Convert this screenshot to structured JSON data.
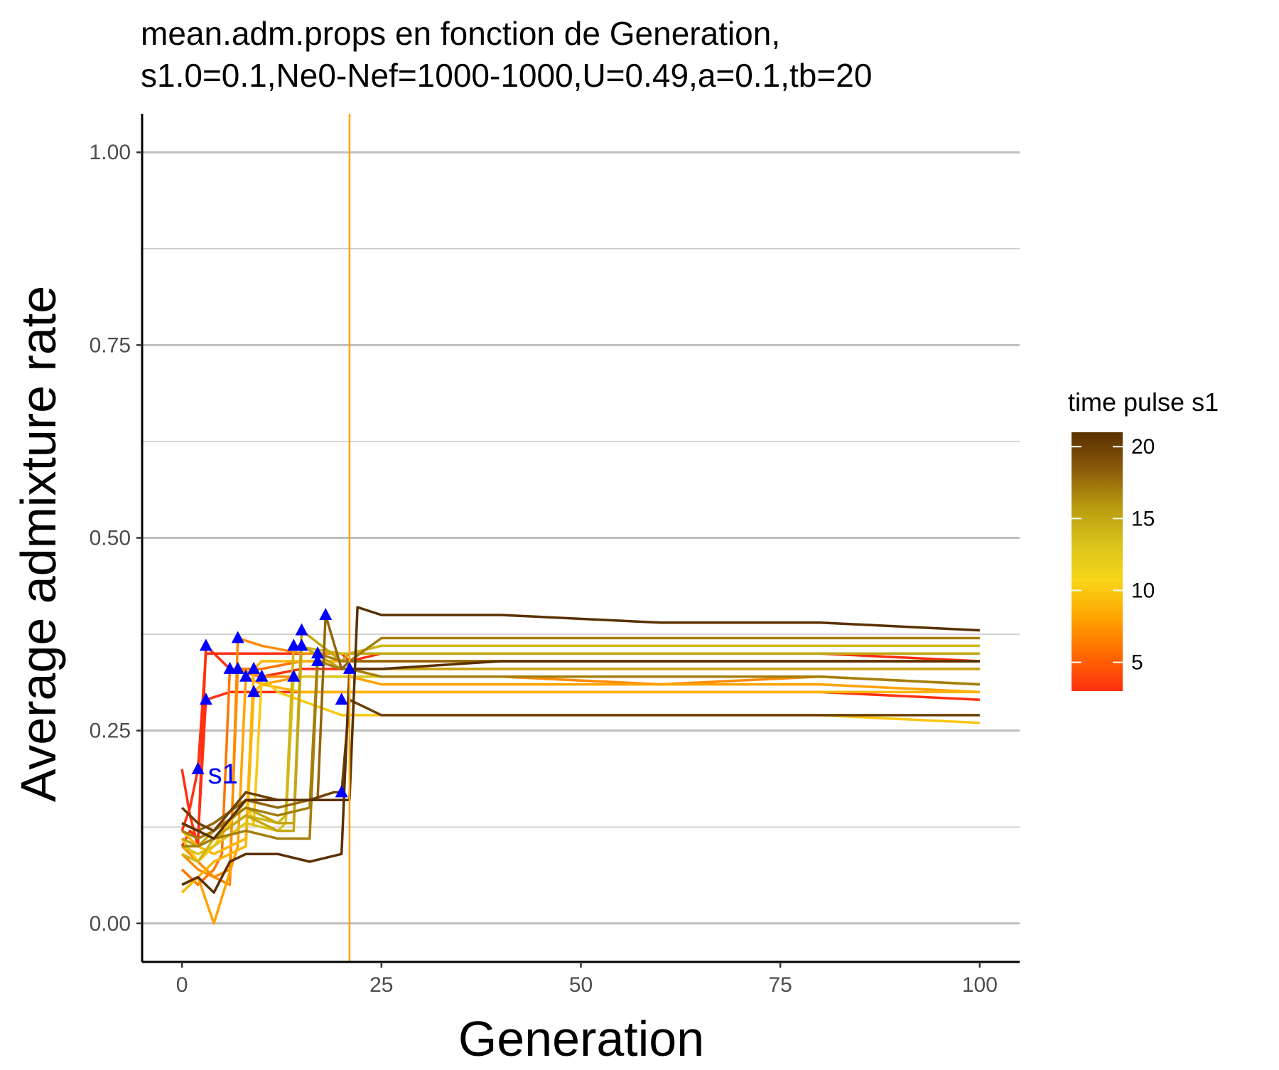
{
  "chart_data": {
    "type": "line",
    "title": [
      "mean.adm.props en fonction de Generation,",
      "s1.0=0.1,Ne0-Nef=1000-1000,U=0.49,a=0.1,tb=20"
    ],
    "xlabel": "Generation",
    "ylabel": "Average admixture rate",
    "xlim": [
      -5,
      105
    ],
    "ylim": [
      -0.05,
      1.05
    ],
    "x_ticks": [
      0,
      25,
      50,
      75,
      100
    ],
    "x_tick_labels": [
      "0",
      "25",
      "50",
      "75",
      "100"
    ],
    "y_ticks": [
      0.0,
      0.25,
      0.5,
      0.75,
      1.0
    ],
    "y_tick_labels": [
      "0.00",
      "0.25",
      "0.50",
      "0.75",
      "1.00"
    ],
    "y_minor_ticks": [
      0.125,
      0.375,
      0.625,
      0.875
    ],
    "grid": "horizontal",
    "vline": {
      "x": 21,
      "color": "#FFA500"
    },
    "legend": {
      "title": "time pulse s1",
      "placement": "right",
      "min": 3,
      "max": 21,
      "ticks": [
        5,
        10,
        15,
        20
      ],
      "tick_labels": [
        "5",
        "10",
        "15",
        "20"
      ],
      "colors": [
        "#FF3010",
        "#FF6A00",
        "#FFA500",
        "#F7D618",
        "#D8C21B",
        "#B89A0E",
        "#8A5A0A",
        "#5A3000"
      ]
    },
    "marker_color": "#0000FF",
    "marker_label": "s1",
    "series": [
      {
        "pulse": 2,
        "x": [
          0,
          1,
          2,
          3,
          5,
          8,
          12,
          20,
          21,
          25,
          40,
          60,
          80,
          100
        ],
        "y": [
          0.12,
          0.15,
          0.2,
          0.35,
          0.35,
          0.35,
          0.35,
          0.35,
          0.34,
          0.35,
          0.35,
          0.35,
          0.35,
          0.34
        ]
      },
      {
        "pulse": 3,
        "x": [
          0,
          1,
          2,
          3,
          6,
          10,
          15,
          20,
          21,
          25,
          40,
          60,
          80,
          100
        ],
        "y": [
          0.1,
          0.12,
          0.11,
          0.29,
          0.3,
          0.3,
          0.3,
          0.3,
          0.3,
          0.3,
          0.3,
          0.3,
          0.3,
          0.29
        ]
      },
      {
        "pulse": 3,
        "x": [
          0,
          1,
          2,
          3,
          6,
          10,
          15,
          20,
          21,
          25,
          40,
          60,
          80,
          100
        ],
        "y": [
          0.2,
          0.14,
          0.1,
          0.36,
          0.33,
          0.32,
          0.33,
          0.33,
          0.33,
          0.33,
          0.33,
          0.33,
          0.33,
          0.33
        ]
      },
      {
        "pulse": 6,
        "x": [
          0,
          2,
          4,
          5,
          6,
          10,
          15,
          20,
          21,
          25,
          40,
          60,
          80,
          100
        ],
        "y": [
          0.07,
          0.05,
          0.07,
          0.09,
          0.33,
          0.33,
          0.34,
          0.34,
          0.34,
          0.34,
          0.34,
          0.34,
          0.34,
          0.34
        ]
      },
      {
        "pulse": 7,
        "x": [
          0,
          2,
          4,
          6,
          7,
          10,
          15,
          20,
          21,
          25,
          40,
          60,
          80,
          100
        ],
        "y": [
          0.09,
          0.07,
          0.06,
          0.05,
          0.37,
          0.36,
          0.35,
          0.35,
          0.35,
          0.36,
          0.36,
          0.36,
          0.36,
          0.36
        ]
      },
      {
        "pulse": 7,
        "x": [
          0,
          2,
          4,
          6,
          7,
          10,
          15,
          20,
          21,
          25,
          40,
          60,
          80,
          100
        ],
        "y": [
          0.1,
          0.08,
          0.06,
          0.07,
          0.33,
          0.32,
          0.32,
          0.32,
          0.32,
          0.32,
          0.32,
          0.31,
          0.32,
          0.31
        ]
      },
      {
        "pulse": 8,
        "x": [
          0,
          2,
          4,
          7,
          8,
          10,
          15,
          20,
          21,
          25,
          40,
          60,
          80,
          100
        ],
        "y": [
          0.05,
          0.06,
          0.0,
          0.1,
          0.32,
          0.31,
          0.32,
          0.32,
          0.32,
          0.31,
          0.31,
          0.31,
          0.31,
          0.3
        ]
      },
      {
        "pulse": 9,
        "x": [
          0,
          2,
          4,
          8,
          9,
          10,
          15,
          20,
          21,
          25,
          40,
          60,
          80,
          100
        ],
        "y": [
          0.04,
          0.06,
          0.08,
          0.1,
          0.3,
          0.31,
          0.3,
          0.3,
          0.3,
          0.3,
          0.3,
          0.3,
          0.3,
          0.3
        ]
      },
      {
        "pulse": 9,
        "x": [
          0,
          2,
          4,
          8,
          9,
          10,
          15,
          20,
          21,
          25,
          40,
          60,
          80,
          100
        ],
        "y": [
          0.12,
          0.1,
          0.09,
          0.11,
          0.33,
          0.34,
          0.34,
          0.34,
          0.34,
          0.34,
          0.34,
          0.34,
          0.34,
          0.34
        ]
      },
      {
        "pulse": 10,
        "x": [
          0,
          2,
          4,
          8,
          9,
          10,
          12,
          20,
          21,
          25,
          40,
          60,
          80,
          100
        ],
        "y": [
          0.11,
          0.08,
          0.1,
          0.16,
          0.13,
          0.32,
          0.3,
          0.27,
          0.27,
          0.27,
          0.27,
          0.27,
          0.27,
          0.26
        ]
      },
      {
        "pulse": 13,
        "x": [
          0,
          2,
          4,
          8,
          12,
          13,
          14,
          20,
          21,
          25,
          40,
          60,
          80,
          100
        ],
        "y": [
          0.1,
          0.09,
          0.1,
          0.13,
          0.12,
          0.13,
          0.32,
          0.32,
          0.32,
          0.32,
          0.32,
          0.32,
          0.32,
          0.31
        ]
      },
      {
        "pulse": 14,
        "x": [
          0,
          2,
          4,
          8,
          12,
          13,
          14,
          20,
          21,
          25,
          40,
          60,
          80,
          100
        ],
        "y": [
          0.09,
          0.08,
          0.11,
          0.14,
          0.13,
          0.14,
          0.36,
          0.35,
          0.35,
          0.36,
          0.36,
          0.36,
          0.36,
          0.36
        ]
      },
      {
        "pulse": 15,
        "x": [
          0,
          2,
          4,
          8,
          12,
          14,
          15,
          20,
          21,
          25,
          40,
          60,
          80,
          100
        ],
        "y": [
          0.11,
          0.1,
          0.12,
          0.15,
          0.13,
          0.13,
          0.38,
          0.34,
          0.35,
          0.35,
          0.35,
          0.35,
          0.35,
          0.35
        ]
      },
      {
        "pulse": 15,
        "x": [
          0,
          2,
          4,
          8,
          12,
          14,
          15,
          20,
          21,
          25,
          40,
          60,
          80,
          100
        ],
        "y": [
          0.13,
          0.12,
          0.11,
          0.14,
          0.12,
          0.12,
          0.36,
          0.33,
          0.33,
          0.33,
          0.33,
          0.33,
          0.33,
          0.33
        ]
      },
      {
        "pulse": 17,
        "x": [
          0,
          2,
          4,
          8,
          12,
          16,
          17,
          20,
          21,
          25,
          40,
          60,
          80,
          100
        ],
        "y": [
          0.12,
          0.11,
          0.12,
          0.15,
          0.14,
          0.15,
          0.35,
          0.34,
          0.34,
          0.37,
          0.37,
          0.37,
          0.37,
          0.37
        ]
      },
      {
        "pulse": 17,
        "x": [
          0,
          2,
          4,
          8,
          12,
          16,
          17,
          20,
          21,
          25,
          40,
          60,
          80,
          100
        ],
        "y": [
          0.1,
          0.1,
          0.11,
          0.12,
          0.11,
          0.11,
          0.34,
          0.33,
          0.33,
          0.32,
          0.32,
          0.32,
          0.32,
          0.31
        ]
      },
      {
        "pulse": 18,
        "x": [
          0,
          2,
          4,
          8,
          12,
          16,
          17,
          18,
          20,
          21,
          25,
          40,
          60,
          80,
          100
        ],
        "y": [
          0.13,
          0.12,
          0.13,
          0.16,
          0.15,
          0.16,
          0.16,
          0.4,
          0.33,
          0.34,
          0.34,
          0.34,
          0.34,
          0.34,
          0.34
        ]
      },
      {
        "pulse": 20,
        "x": [
          0,
          2,
          4,
          8,
          12,
          16,
          19,
          20,
          21,
          25,
          40,
          60,
          80,
          100
        ],
        "y": [
          0.15,
          0.13,
          0.12,
          0.17,
          0.16,
          0.16,
          0.17,
          0.17,
          0.29,
          0.27,
          0.27,
          0.27,
          0.27,
          0.27
        ]
      },
      {
        "pulse": 21,
        "x": [
          0,
          2,
          4,
          6,
          8,
          12,
          16,
          20,
          21,
          25,
          40,
          60,
          80,
          100
        ],
        "y": [
          0.05,
          0.06,
          0.04,
          0.08,
          0.09,
          0.09,
          0.08,
          0.09,
          0.33,
          0.33,
          0.34,
          0.34,
          0.34,
          0.34
        ]
      },
      {
        "pulse": 21,
        "x": [
          0,
          2,
          4,
          8,
          12,
          16,
          20,
          21,
          22,
          25,
          40,
          60,
          80,
          100
        ],
        "y": [
          0.13,
          0.12,
          0.11,
          0.16,
          0.16,
          0.16,
          0.16,
          0.16,
          0.41,
          0.4,
          0.4,
          0.39,
          0.39,
          0.38
        ]
      }
    ],
    "markers": [
      {
        "x": 2,
        "y": 0.2
      },
      {
        "x": 3,
        "y": 0.29
      },
      {
        "x": 3,
        "y": 0.36
      },
      {
        "x": 6,
        "y": 0.33
      },
      {
        "x": 7,
        "y": 0.37
      },
      {
        "x": 7,
        "y": 0.33
      },
      {
        "x": 8,
        "y": 0.32
      },
      {
        "x": 9,
        "y": 0.3
      },
      {
        "x": 9,
        "y": 0.33
      },
      {
        "x": 10,
        "y": 0.32
      },
      {
        "x": 14,
        "y": 0.32
      },
      {
        "x": 14,
        "y": 0.36
      },
      {
        "x": 15,
        "y": 0.38
      },
      {
        "x": 15,
        "y": 0.36
      },
      {
        "x": 17,
        "y": 0.35
      },
      {
        "x": 17,
        "y": 0.34
      },
      {
        "x": 18,
        "y": 0.4
      },
      {
        "x": 20,
        "y": 0.17
      },
      {
        "x": 20,
        "y": 0.29
      },
      {
        "x": 21,
        "y": 0.33
      }
    ]
  }
}
